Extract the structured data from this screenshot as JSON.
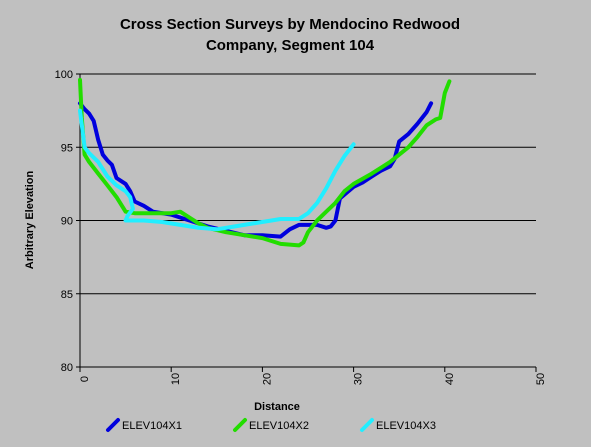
{
  "chart_data": {
    "type": "line",
    "title_lines": [
      "Cross Section Surveys by Mendocino Redwood",
      "Company, Segment 104"
    ],
    "xlabel": "Distance",
    "ylabel": "Arbitrary Elevation",
    "xlim": [
      0,
      50
    ],
    "ylim": [
      80,
      100
    ],
    "xticks": [
      "0",
      "10",
      "20",
      "30",
      "40",
      "50"
    ],
    "yticks": [
      "80",
      "85",
      "90",
      "95",
      "100"
    ],
    "grid": "horizontal",
    "legend_position": "bottom",
    "series": [
      {
        "name": "ELEV104X1",
        "color": "#0000dd",
        "points": [
          [
            0,
            98
          ],
          [
            0.5,
            97.6
          ],
          [
            1,
            97.3
          ],
          [
            1.5,
            96.8
          ],
          [
            2,
            95.5
          ],
          [
            2.5,
            94.5
          ],
          [
            3,
            94.1
          ],
          [
            3.5,
            93.8
          ],
          [
            4,
            92.9
          ],
          [
            4.5,
            92.7
          ],
          [
            5,
            92.5
          ],
          [
            5.5,
            92.0
          ],
          [
            6,
            91.3
          ],
          [
            7,
            91.0
          ],
          [
            8,
            90.6
          ],
          [
            10,
            90.4
          ],
          [
            12,
            90.0
          ],
          [
            14,
            89.6
          ],
          [
            16,
            89.3
          ],
          [
            18,
            89.0
          ],
          [
            20,
            89.0
          ],
          [
            22,
            88.9
          ],
          [
            23,
            89.4
          ],
          [
            24,
            89.7
          ],
          [
            26,
            89.7
          ],
          [
            27,
            89.5
          ],
          [
            27.5,
            89.6
          ],
          [
            28,
            90.0
          ],
          [
            28.5,
            91.5
          ],
          [
            30,
            92.3
          ],
          [
            31,
            92.6
          ],
          [
            32,
            93.0
          ],
          [
            33,
            93.4
          ],
          [
            34,
            93.7
          ],
          [
            34.5,
            94.2
          ],
          [
            35,
            95.4
          ],
          [
            36,
            95.9
          ],
          [
            37,
            96.6
          ],
          [
            38,
            97.4
          ],
          [
            38.5,
            98.0
          ]
        ]
      },
      {
        "name": "ELEV104X2",
        "color": "#22dd00",
        "points": [
          [
            0,
            99.6
          ],
          [
            0.2,
            97.0
          ],
          [
            0.5,
            94.5
          ],
          [
            1,
            94.0
          ],
          [
            2,
            93.2
          ],
          [
            3,
            92.4
          ],
          [
            4,
            91.6
          ],
          [
            5,
            90.6
          ],
          [
            6,
            90.5
          ],
          [
            8,
            90.5
          ],
          [
            10,
            90.5
          ],
          [
            11,
            90.6
          ],
          [
            12,
            90.2
          ],
          [
            13,
            89.8
          ],
          [
            14,
            89.5
          ],
          [
            16,
            89.2
          ],
          [
            18,
            89.0
          ],
          [
            20,
            88.8
          ],
          [
            22,
            88.4
          ],
          [
            24,
            88.3
          ],
          [
            24.5,
            88.5
          ],
          [
            25,
            89.2
          ],
          [
            26,
            90.0
          ],
          [
            27,
            90.6
          ],
          [
            28,
            91.2
          ],
          [
            29,
            92.0
          ],
          [
            30,
            92.5
          ],
          [
            32,
            93.2
          ],
          [
            34,
            94.0
          ],
          [
            36,
            95.0
          ],
          [
            37,
            95.7
          ],
          [
            38,
            96.5
          ],
          [
            39,
            96.9
          ],
          [
            39.5,
            97.0
          ],
          [
            40,
            98.7
          ],
          [
            40.5,
            99.5
          ]
        ]
      },
      {
        "name": "ELEV104X3",
        "color": "#22eeff",
        "points": [
          [
            0,
            97.5
          ],
          [
            0.5,
            95.0
          ],
          [
            1,
            94.6
          ],
          [
            2,
            94.0
          ],
          [
            3,
            93.0
          ],
          [
            4,
            92.4
          ],
          [
            5,
            92.0
          ],
          [
            5.5,
            91.6
          ],
          [
            5.8,
            90.8
          ],
          [
            5.2,
            90.3
          ],
          [
            5,
            90.0
          ],
          [
            7,
            90.0
          ],
          [
            9,
            89.9
          ],
          [
            11,
            89.7
          ],
          [
            13,
            89.5
          ],
          [
            15,
            89.4
          ],
          [
            17,
            89.6
          ],
          [
            19,
            89.8
          ],
          [
            21,
            90.0
          ],
          [
            22,
            90.1
          ],
          [
            24,
            90.1
          ],
          [
            25,
            90.5
          ],
          [
            26,
            91.2
          ],
          [
            27,
            92.2
          ],
          [
            28,
            93.4
          ],
          [
            29,
            94.4
          ],
          [
            30,
            95.2
          ]
        ]
      }
    ]
  }
}
